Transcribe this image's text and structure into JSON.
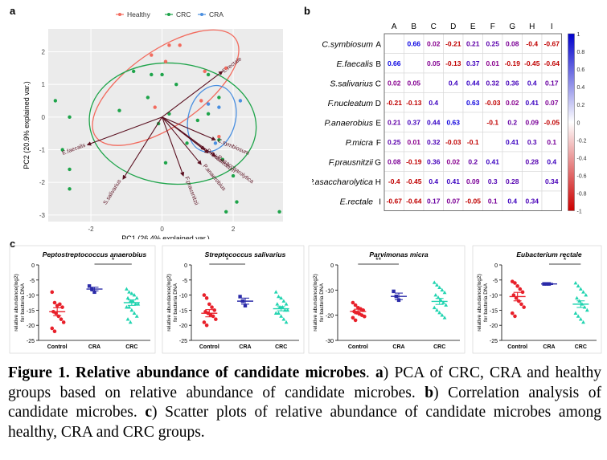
{
  "panel_labels": {
    "a": "a",
    "b": "b",
    "c": "c"
  },
  "caption": {
    "fig": "Figure 1. Relative abundance of candidate microbes",
    "p1": ". ",
    "a_letter": "a",
    "a_text": ") PCA of CRC, CRA and healthy groups based on relative abundance of candidate microbes. ",
    "b_letter": "b",
    "b_text": ") Correlation analysis of candidate microbes. ",
    "c_letter": "c",
    "c_text": ") Scatter plots of relative abundance of candidate microbes among healthy, CRA and CRC groups."
  },
  "chart_data": [
    {
      "type": "scatter",
      "panel": "a",
      "xlabel": "PC1 (26.4% explained var.)",
      "ylabel": "PC2 (20.9% explained var.)",
      "xlim": [
        -3.2,
        3.4
      ],
      "ylim": [
        -3.2,
        2.7
      ],
      "xticks": [
        -2,
        0,
        2
      ],
      "yticks": [
        -3,
        -2,
        -1,
        0,
        1,
        2
      ],
      "legend": {
        "position": "top",
        "entries": [
          {
            "name": "Healthy",
            "color": "#f26b5e"
          },
          {
            "name": "CRC",
            "color": "#1ea44a"
          },
          {
            "name": "CRA",
            "color": "#4a8fe0"
          }
        ]
      },
      "series": [
        {
          "name": "Healthy",
          "color": "#f26b5e",
          "ellipse": {
            "cx": 0.1,
            "cy": 0.9,
            "rx": 2.4,
            "ry": 1.15,
            "angle": 35
          },
          "points": [
            [
              0.2,
              2.2
            ],
            [
              0.5,
              2.2
            ],
            [
              0.1,
              1.7
            ],
            [
              -0.3,
              1.9
            ],
            [
              1.2,
              1.4
            ],
            [
              1.8,
              1.5
            ],
            [
              1.1,
              0.5
            ],
            [
              1.6,
              -0.6
            ],
            [
              -0.2,
              0.3
            ]
          ]
        },
        {
          "name": "CRC",
          "color": "#1ea44a",
          "ellipse": {
            "cx": 0.3,
            "cy": -0.2,
            "rx": 2.35,
            "ry": 1.85,
            "angle": -5
          },
          "points": [
            [
              -3.0,
              0.5
            ],
            [
              -2.6,
              0.0
            ],
            [
              -2.8,
              -1.0
            ],
            [
              -2.6,
              -1.6
            ],
            [
              -2.6,
              -2.2
            ],
            [
              -1.2,
              0.2
            ],
            [
              -0.8,
              1.4
            ],
            [
              -0.3,
              1.3
            ],
            [
              0.0,
              1.3
            ],
            [
              0.4,
              1.0
            ],
            [
              0.2,
              0.1
            ],
            [
              1.3,
              1.3
            ],
            [
              1.6,
              0.6
            ],
            [
              1.3,
              0.1
            ],
            [
              1.0,
              -0.1
            ],
            [
              0.1,
              -1.4
            ],
            [
              1.7,
              -1.3
            ],
            [
              2.0,
              -1.8
            ],
            [
              2.1,
              -2.6
            ],
            [
              1.8,
              -2.9
            ],
            [
              3.3,
              -2.9
            ],
            [
              1.6,
              -0.7
            ],
            [
              0.7,
              -0.8
            ],
            [
              -0.4,
              0.6
            ],
            [
              -0.1,
              -0.2
            ]
          ]
        },
        {
          "name": "CRA",
          "color": "#4a8fe0",
          "ellipse": {
            "cx": 1.4,
            "cy": -0.05,
            "rx": 0.95,
            "ry": 0.72,
            "angle": 75
          },
          "points": [
            [
              1.6,
              0.3
            ],
            [
              1.3,
              0.4
            ],
            [
              2.2,
              0.5
            ],
            [
              1.5,
              -0.8
            ]
          ]
        }
      ],
      "loadings": [
        {
          "label": "E.rectale",
          "x": 1.7,
          "y": 1.4
        },
        {
          "label": "C.symbiosum",
          "x": 1.5,
          "y": -0.7
        },
        {
          "label": "P.asaccharolytica",
          "x": 1.5,
          "y": -1.2
        },
        {
          "label": "F.nucleatum",
          "x": 1.3,
          "y": -1.1
        },
        {
          "label": "P.anaerobius",
          "x": 1.1,
          "y": -1.45
        },
        {
          "label": "P.micra",
          "x": 1.2,
          "y": -1.0
        },
        {
          "label": "F.prausnitzii",
          "x": 0.6,
          "y": -1.8
        },
        {
          "label": "E.faecalis",
          "x": -2.1,
          "y": -0.85
        },
        {
          "label": "S.salivarius",
          "x": -1.1,
          "y": -1.9
        }
      ]
    },
    {
      "type": "heatmap",
      "panel": "b",
      "columns": [
        "A",
        "B",
        "C",
        "D",
        "E",
        "F",
        "G",
        "H",
        "I"
      ],
      "rows": [
        {
          "name": "C.symbiosum",
          "letter": "A"
        },
        {
          "name": "E.faecalis",
          "letter": "B"
        },
        {
          "name": "S.salivarius",
          "letter": "C"
        },
        {
          "name": "F.nucleatum",
          "letter": "D"
        },
        {
          "name": "P.anaerobius",
          "letter": "E"
        },
        {
          "name": "P.micra",
          "letter": "F"
        },
        {
          "name": "F.prausnitzii",
          "letter": "G"
        },
        {
          "name": "P.asaccharolytica",
          "letter": "H"
        },
        {
          "name": "E.rectale",
          "letter": "I"
        }
      ],
      "values": [
        [
          null,
          0.66,
          0.02,
          -0.21,
          0.21,
          0.25,
          0.08,
          -0.4,
          -0.67
        ],
        [
          0.66,
          null,
          0.05,
          -0.13,
          0.37,
          0.01,
          -0.19,
          -0.45,
          -0.64
        ],
        [
          0.02,
          0.05,
          null,
          0.4,
          0.44,
          0.32,
          0.36,
          0.4,
          0.17
        ],
        [
          -0.21,
          -0.13,
          0.4,
          null,
          0.63,
          -0.03,
          0.02,
          0.41,
          0.07
        ],
        [
          0.21,
          0.37,
          0.44,
          0.63,
          null,
          -0.1,
          0.2,
          0.09,
          -0.05
        ],
        [
          0.25,
          0.01,
          0.32,
          -0.03,
          -0.1,
          null,
          0.41,
          0.3,
          0.1
        ],
        [
          0.08,
          -0.19,
          0.36,
          0.02,
          0.2,
          0.41,
          null,
          0.28,
          0.4
        ],
        [
          -0.4,
          -0.45,
          0.4,
          0.41,
          0.09,
          0.3,
          0.28,
          null,
          0.34
        ],
        [
          -0.67,
          -0.64,
          0.17,
          0.07,
          -0.05,
          0.1,
          0.4,
          0.34,
          null
        ]
      ],
      "colorbar": {
        "ticks": [
          "1",
          "0.8",
          "0.6",
          "0.4",
          "0.2",
          "0",
          "-0.2",
          "-0.4",
          "-0.6",
          "-0.8",
          "-1"
        ],
        "low_color": "#cc0000",
        "mid_color": "#ffffff",
        "high_color": "#0000cc"
      }
    },
    {
      "type": "scatter",
      "panel": "c",
      "plots": [
        {
          "title": "Peptostreptococcus anaerobius",
          "ylabel": "relative abundance(log2)\nfor bacteria DNA",
          "ylim": [
            -25,
            0
          ],
          "yticks": [
            0,
            -5,
            -10,
            -15,
            -20,
            -25
          ],
          "sig": "*",
          "sig_pair": [
            1,
            2
          ],
          "groups": [
            {
              "name": "Control",
              "color": "#e8202a",
              "mean": -15.5,
              "sem": 1.3,
              "values": [
                -9,
                -12.5,
                -13.5,
                -13,
                -14,
                -15.5,
                -16,
                -17,
                -18,
                -19,
                -21,
                -22
              ]
            },
            {
              "name": "CRA",
              "color": "#2a2aa8",
              "mean": -8,
              "sem": 0.6,
              "values": [
                -7,
                -8,
                -9
              ]
            },
            {
              "name": "CRC",
              "color": "#21d4b0",
              "mean": -12.5,
              "sem": 0.9,
              "values": [
                -8,
                -9,
                -9.5,
                -10,
                -11,
                -11,
                -12,
                -12,
                -13,
                -13,
                -14,
                -14,
                -15,
                -16,
                -17,
                -18,
                -19
              ]
            }
          ]
        },
        {
          "title": "Streptococcus salivarius",
          "ylabel": "relative abundance(log2)\nfor bacteria DNA",
          "ylim": [
            -25,
            0
          ],
          "yticks": [
            0,
            -5,
            -10,
            -15,
            -20,
            -25
          ],
          "sig": "*",
          "sig_pair": [
            0,
            1
          ],
          "groups": [
            {
              "name": "Control",
              "color": "#e8202a",
              "mean": -16,
              "sem": 1.2,
              "values": [
                -10,
                -11,
                -13,
                -14,
                -15,
                -15.5,
                -16,
                -16.5,
                -17,
                -18,
                -19,
                -20
              ]
            },
            {
              "name": "CRA",
              "color": "#2a2aa8",
              "mean": -12,
              "sem": 1.0,
              "values": [
                -10.5,
                -12,
                -13.5
              ]
            },
            {
              "name": "CRC",
              "color": "#21d4b0",
              "mean": -14.5,
              "sem": 0.7,
              "values": [
                -9,
                -10.5,
                -11,
                -12,
                -13,
                -13,
                -14,
                -14,
                -15,
                -15,
                -16,
                -16,
                -17,
                -18,
                -19
              ]
            }
          ]
        },
        {
          "title": "Parvimonas micra",
          "ylabel": "relative abundance(log2)\nfor bacteria DNA",
          "ylim": [
            -30,
            0
          ],
          "yticks": [
            0,
            -10,
            -20,
            -30
          ],
          "sig": "**",
          "sig_pair": [
            0,
            1
          ],
          "groups": [
            {
              "name": "Control",
              "color": "#e8202a",
              "mean": -18.5,
              "sem": 0.9,
              "values": [
                -15,
                -16,
                -17,
                -17.5,
                -18,
                -18.5,
                -19,
                -19.5,
                -20,
                -20.5,
                -21,
                -22
              ]
            },
            {
              "name": "CRA",
              "color": "#2a2aa8",
              "mean": -12.5,
              "sem": 1.3,
              "values": [
                -10.5,
                -12.5,
                -14
              ]
            },
            {
              "name": "CRC",
              "color": "#21d4b0",
              "mean": -14.5,
              "sem": 1.2,
              "values": [
                -7,
                -8,
                -9,
                -10,
                -11,
                -12,
                -13,
                -14,
                -15,
                -16,
                -17,
                -18,
                -19,
                -20,
                -21
              ]
            }
          ]
        },
        {
          "title": "Eubacterium rectale",
          "ylabel": "relative abundance(log2)\nfor bacteria DNA",
          "ylim": [
            -25,
            0
          ],
          "yticks": [
            0,
            -5,
            -10,
            -15,
            -20,
            -25
          ],
          "sig": "*",
          "sig_pair": [
            1,
            2
          ],
          "groups": [
            {
              "name": "Control",
              "color": "#e8202a",
              "mean": -10.5,
              "sem": 1.4,
              "values": [
                -5.5,
                -6,
                -7,
                -8,
                -9,
                -10,
                -11,
                -12,
                -13,
                -14,
                -16,
                -17
              ]
            },
            {
              "name": "CRA",
              "color": "#2a2aa8",
              "mean": -6.3,
              "sem": 0.2,
              "values": [
                -6.3,
                -6.3,
                -6.3
              ]
            },
            {
              "name": "CRC",
              "color": "#21d4b0",
              "mean": -13,
              "sem": 1.1,
              "values": [
                -6,
                -7,
                -8,
                -9,
                -10,
                -11,
                -12,
                -13,
                -14,
                -15,
                -16,
                -17,
                -18,
                -19
              ]
            }
          ]
        }
      ]
    }
  ]
}
